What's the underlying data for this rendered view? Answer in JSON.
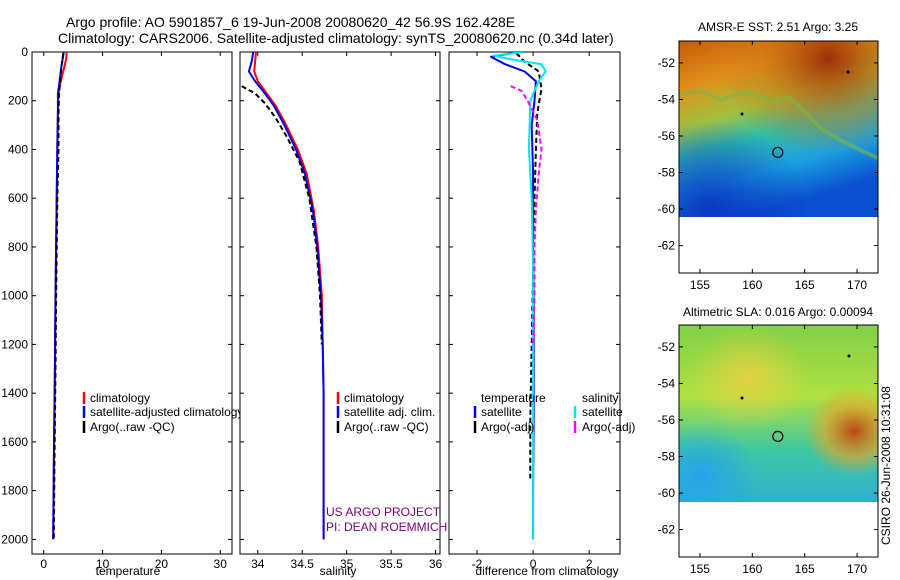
{
  "figure": {
    "title_line1": "Argo profile: AO 5901857_6 19-Jun-2008 20080620_42 56.9S 162.428E",
    "title_line2": "Climatology: CARS2006. Satellite-adjusted climatology: synTS_20080620.nc (0.34d later)",
    "timestamp": "CSIRO 26-Jun-2008 10:31:08",
    "project_line1": "US ARGO PROJECT",
    "project_line2": "PI: DEAN ROEMMICH"
  },
  "colors": {
    "clim": "#ff0000",
    "sat": "#0000ff",
    "argo": "#000000",
    "sal_sat": "#00e5ee",
    "sal_argo": "#ff00ff",
    "credit": "#800080"
  },
  "chart_data": [
    {
      "id": "temperature",
      "type": "line",
      "xlabel": "temperature",
      "ylabel": "",
      "xlim": [
        -2,
        32
      ],
      "ylim": [
        2060,
        0
      ],
      "xticks": [
        0,
        10,
        20,
        30
      ],
      "yticks": [
        0,
        200,
        400,
        600,
        800,
        1000,
        1200,
        1400,
        1600,
        1800,
        2000
      ],
      "legend": {
        "position": "lower-right",
        "entries": [
          "climatology",
          "satellite-adjusted climatology",
          "Argo(..raw -QC)"
        ]
      },
      "series": [
        {
          "name": "climatology",
          "color": "#ff0000",
          "style": "solid",
          "x": [
            3.9,
            3.8,
            3.5,
            2.9,
            2.5,
            2.4,
            2.3,
            2.2,
            2.1,
            2.0,
            1.9,
            1.7,
            1.6
          ],
          "y": [
            0,
            30,
            60,
            120,
            170,
            250,
            400,
            600,
            800,
            1000,
            1300,
            1700,
            2000
          ]
        },
        {
          "name": "satellite-adjusted climatology",
          "color": "#0000ff",
          "style": "solid",
          "x": [
            3.4,
            3.2,
            3.0,
            2.7,
            2.4,
            2.4,
            2.3,
            2.2,
            2.1,
            2.0,
            1.9,
            1.7,
            1.6
          ],
          "y": [
            0,
            30,
            60,
            120,
            170,
            250,
            400,
            600,
            800,
            1000,
            1300,
            1700,
            2000
          ]
        },
        {
          "name": "Argo(..raw -QC)",
          "color": "#000000",
          "style": "dashed",
          "x": [
            3.3,
            3.2,
            3.0,
            2.8,
            2.6,
            2.5,
            2.5,
            2.3,
            2.2,
            2.1,
            2.0,
            1.8,
            1.7
          ],
          "y": [
            5,
            30,
            60,
            120,
            170,
            250,
            400,
            600,
            800,
            1000,
            1300,
            1700,
            2000
          ]
        }
      ]
    },
    {
      "id": "salinity",
      "type": "line",
      "xlabel": "salinity",
      "ylabel": "",
      "xlim": [
        33.8,
        36.05
      ],
      "ylim": [
        2060,
        0
      ],
      "xticks": [
        34,
        34.5,
        35,
        35.5,
        36
      ],
      "xticklabels": [
        "34",
        "34.5",
        "35",
        "35.5",
        "36"
      ],
      "legend": {
        "position": "lower-right",
        "entries": [
          "climatology",
          "satellite adj. clim.",
          "Argo(..raw -QC)"
        ]
      },
      "series": [
        {
          "name": "climatology",
          "color": "#ff0000",
          "style": "solid",
          "x": [
            33.98,
            33.97,
            33.96,
            34.0,
            34.08,
            34.2,
            34.32,
            34.45,
            34.55,
            34.63,
            34.68,
            34.72,
            34.73,
            34.74,
            34.74,
            34.74
          ],
          "y": [
            0,
            40,
            80,
            120,
            160,
            220,
            300,
            400,
            500,
            650,
            800,
            1000,
            1200,
            1400,
            1700,
            2000
          ]
        },
        {
          "name": "satellite adj. clim.",
          "color": "#0000ff",
          "style": "solid",
          "x": [
            33.95,
            33.93,
            33.9,
            33.97,
            34.06,
            34.18,
            34.3,
            34.43,
            34.53,
            34.62,
            34.67,
            34.71,
            34.73,
            34.74,
            34.74,
            34.74
          ],
          "y": [
            0,
            40,
            80,
            120,
            160,
            220,
            300,
            400,
            500,
            650,
            800,
            1000,
            1200,
            1400,
            1700,
            2000
          ]
        },
        {
          "name": "Argo(..raw -QC)",
          "color": "#000000",
          "style": "dashed",
          "x": [
            33.82,
            33.87,
            33.97,
            34.08,
            34.2,
            34.33,
            34.47,
            34.58,
            34.66,
            34.7,
            34.72
          ],
          "y": [
            140,
            150,
            170,
            210,
            270,
            350,
            450,
            600,
            800,
            1000,
            1200
          ]
        }
      ]
    },
    {
      "id": "difference",
      "type": "line",
      "xlabel": "difference from climatology",
      "ylabel": "",
      "xlim": [
        -3,
        3.1
      ],
      "ylim": [
        2060,
        0
      ],
      "xticks": [
        -2,
        0,
        2
      ],
      "legend": {
        "position": "lower-center",
        "groups": [
          {
            "title": "temperature",
            "entries": [
              "satellite",
              "Argo(-adj)"
            ]
          },
          {
            "title": "salinity",
            "entries": [
              "satellite",
              "Argo(-adj)"
            ]
          }
        ]
      },
      "series": [
        {
          "name": "temperature satellite",
          "color": "#0000ff",
          "style": "solid",
          "x": [
            -0.5,
            -1.5,
            -1.0,
            -0.3,
            0.1,
            0.05,
            -0.05,
            0.0,
            0.0,
            0.02,
            0.02,
            0.0,
            0.0
          ],
          "y": [
            0,
            20,
            50,
            80,
            120,
            200,
            300,
            500,
            800,
            1100,
            1500,
            1800,
            2000
          ]
        },
        {
          "name": "temperature Argo(-adj)",
          "color": "#000000",
          "style": "dashed",
          "x": [
            -0.6,
            -0.3,
            0.2,
            0.3,
            0.15,
            0.1,
            0.05,
            0.0,
            -0.05,
            -0.1,
            -0.1
          ],
          "y": [
            5,
            40,
            80,
            150,
            250,
            400,
            600,
            900,
            1200,
            1500,
            1750
          ]
        },
        {
          "name": "salinity satellite",
          "color": "#00e5ee",
          "style": "solid",
          "x": [
            -0.35,
            -1.4,
            -0.8,
            0.3,
            0.45,
            0.2,
            -0.1,
            -0.15,
            -0.05,
            0.0,
            0.0,
            0.0
          ],
          "y": [
            0,
            15,
            30,
            50,
            80,
            120,
            200,
            400,
            600,
            900,
            1400,
            2000
          ]
        },
        {
          "name": "salinity Argo(-adj)",
          "color": "#ff00ff",
          "style": "dashed",
          "x": [
            -0.8,
            -0.4,
            -0.2,
            0.15,
            0.3,
            0.2,
            0.1,
            0.05,
            0.05,
            0.0
          ],
          "y": [
            140,
            160,
            200,
            280,
            400,
            500,
            650,
            800,
            1000,
            1200
          ]
        }
      ]
    },
    {
      "id": "sst_map",
      "type": "heatmap",
      "title": "AMSR-E SST: 2.51 Argo: 3.25",
      "xlim": [
        153,
        172
      ],
      "ylim": [
        -63.5,
        -50.8
      ],
      "xticks": [
        155,
        160,
        165,
        170
      ],
      "yticks": [
        -52,
        -54,
        -56,
        -58,
        -60,
        -62
      ],
      "data_ylim": [
        -60,
        -50.8
      ],
      "profile_location": [
        162.43,
        -56.9
      ]
    },
    {
      "id": "sla_map",
      "type": "heatmap",
      "title": "Altimetric SLA: 0.016 Argo: 0.00094",
      "xlim": [
        153,
        172
      ],
      "ylim": [
        -63.5,
        -50.8
      ],
      "xticks": [
        155,
        160,
        165,
        170
      ],
      "yticks": [
        -52,
        -54,
        -56,
        -58,
        -60,
        -62
      ],
      "data_ylim": [
        -60,
        -50.8
      ],
      "profile_location": [
        162.43,
        -56.9
      ]
    }
  ]
}
